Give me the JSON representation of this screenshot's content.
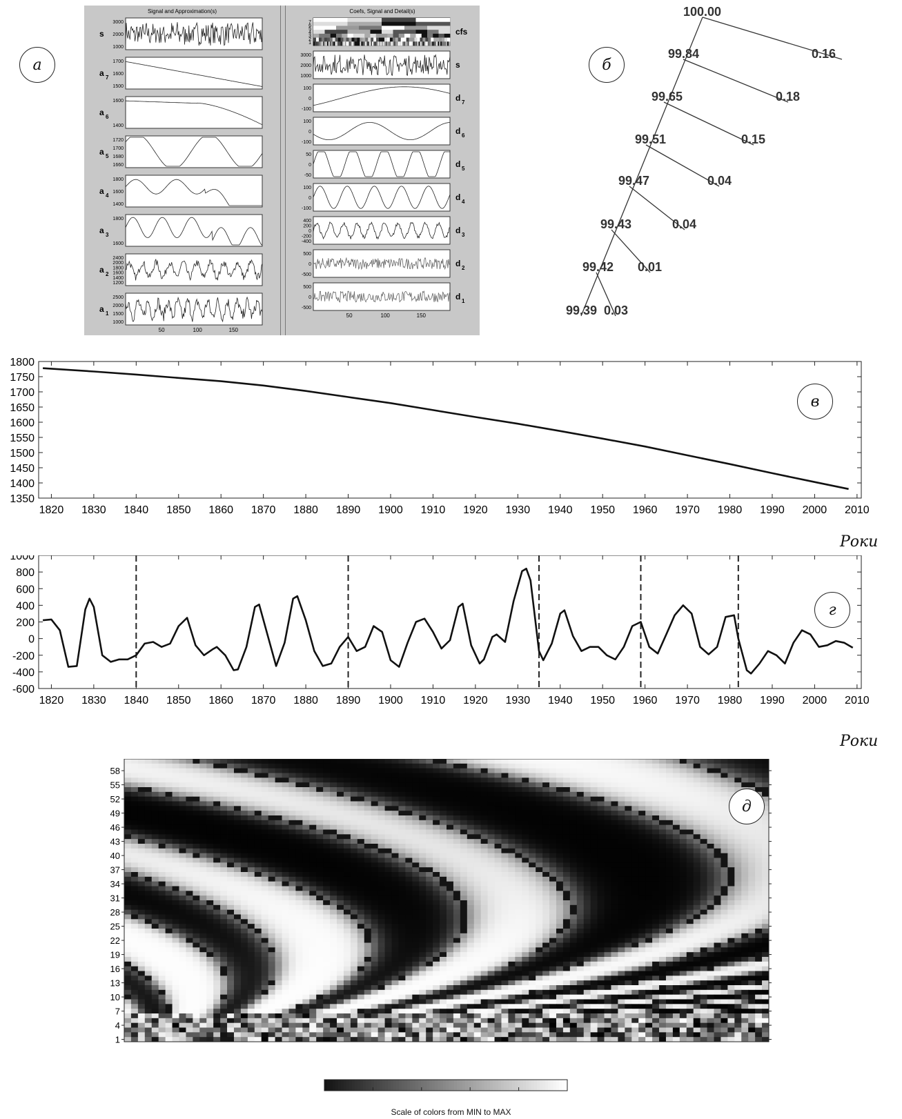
{
  "labels": {
    "a": "а",
    "b": "б",
    "v": "в",
    "g": "г",
    "d": "д",
    "years_axis": "Роки"
  },
  "panel_a": {
    "left_title": "Signal and Approximation(s)",
    "right_title": "Coefs, Signal and Detail(s)",
    "left_rows": [
      {
        "name": "s",
        "sub": "",
        "ticks": [
          "3000",
          "2000",
          "1000"
        ]
      },
      {
        "name": "a",
        "sub": "7",
        "ticks": [
          "1700",
          "1600",
          "1500"
        ]
      },
      {
        "name": "a",
        "sub": "6",
        "ticks": [
          "1600",
          "1400"
        ]
      },
      {
        "name": "a",
        "sub": "5",
        "ticks": [
          "1720",
          "1700",
          "1680",
          "1660"
        ]
      },
      {
        "name": "a",
        "sub": "4",
        "ticks": [
          "1800",
          "1600",
          "1400"
        ]
      },
      {
        "name": "a",
        "sub": "3",
        "ticks": [
          "1800",
          "1600"
        ]
      },
      {
        "name": "a",
        "sub": "2",
        "ticks": [
          "2400",
          "2000",
          "1800",
          "1600",
          "1400",
          "1200"
        ]
      },
      {
        "name": "a",
        "sub": "1",
        "ticks": [
          "2500",
          "2000",
          "1500",
          "1000"
        ]
      }
    ],
    "right_rows": [
      {
        "name": "cfs",
        "sub": "",
        "ticks": [
          "7",
          "6",
          "5",
          "4",
          "3",
          "2",
          "1"
        ]
      },
      {
        "name": "s",
        "sub": "",
        "ticks": [
          "3000",
          "2000",
          "1000"
        ]
      },
      {
        "name": "d",
        "sub": "7",
        "ticks": [
          "100",
          "0",
          "-100"
        ]
      },
      {
        "name": "d",
        "sub": "6",
        "ticks": [
          "100",
          "0",
          "-100"
        ]
      },
      {
        "name": "d",
        "sub": "5",
        "ticks": [
          "50",
          "0",
          "-50"
        ]
      },
      {
        "name": "d",
        "sub": "4",
        "ticks": [
          "100",
          "0",
          "-100"
        ]
      },
      {
        "name": "d",
        "sub": "3",
        "ticks": [
          "400",
          "200",
          "0",
          "-200",
          "-400"
        ]
      },
      {
        "name": "d",
        "sub": "2",
        "ticks": [
          "500",
          "0",
          "-500"
        ]
      },
      {
        "name": "d",
        "sub": "1",
        "ticks": [
          "500",
          "0",
          "-500"
        ]
      }
    ],
    "x_ticks": [
      "50",
      "100",
      "150"
    ]
  },
  "panel_b": {
    "trunk": [
      "100.00",
      "99.84",
      "99.65",
      "99.51",
      "99.47",
      "99.43",
      "99.42",
      "99.39"
    ],
    "branches": [
      "0.16",
      "0.18",
      "0.15",
      "0.04",
      "0.04",
      "0.01",
      "0.03"
    ]
  },
  "chart_data": [
    {
      "type": "line",
      "id": "v",
      "x": [
        1818,
        1830,
        1840,
        1850,
        1860,
        1870,
        1880,
        1890,
        1900,
        1910,
        1920,
        1930,
        1940,
        1950,
        1960,
        1970,
        1980,
        1990,
        2000,
        2008
      ],
      "y": [
        1778,
        1767,
        1757,
        1746,
        1735,
        1721,
        1703,
        1683,
        1663,
        1640,
        1617,
        1595,
        1571,
        1546,
        1520,
        1491,
        1462,
        1432,
        1403,
        1380
      ],
      "ylim": [
        1350,
        1800
      ],
      "xlim": [
        1817,
        2011
      ],
      "yticks": [
        "1800",
        "1750",
        "1700",
        "1650",
        "1600",
        "1550",
        "1500",
        "1450",
        "1400",
        "1350"
      ],
      "xticks": [
        "1820",
        "1830",
        "1840",
        "1850",
        "1860",
        "1870",
        "1880",
        "1890",
        "1900",
        "1910",
        "1920",
        "1930",
        "1940",
        "1950",
        "1960",
        "1970",
        "1980",
        "1990",
        "2000",
        "2010"
      ],
      "xlabel": "Роки"
    },
    {
      "type": "line",
      "id": "g",
      "x": [
        1818,
        1820,
        1822,
        1824,
        1826,
        1828,
        1829,
        1830,
        1832,
        1834,
        1836,
        1838,
        1840,
        1842,
        1844,
        1846,
        1848,
        1850,
        1852,
        1854,
        1856,
        1858,
        1859,
        1861,
        1863,
        1864,
        1866,
        1868,
        1869,
        1871,
        1873,
        1875,
        1877,
        1878,
        1880,
        1882,
        1884,
        1886,
        1888,
        1890,
        1892,
        1894,
        1896,
        1898,
        1900,
        1902,
        1904,
        1906,
        1908,
        1910,
        1912,
        1914,
        1916,
        1917,
        1919,
        1921,
        1922,
        1924,
        1925,
        1927,
        1929,
        1931,
        1932,
        1933,
        1935,
        1936,
        1938,
        1940,
        1941,
        1943,
        1945,
        1947,
        1949,
        1951,
        1953,
        1955,
        1957,
        1959,
        1961,
        1963,
        1965,
        1967,
        1969,
        1971,
        1973,
        1975,
        1977,
        1979,
        1981,
        1982,
        1984,
        1985,
        1987,
        1989,
        1991,
        1993,
        1995,
        1997,
        1999,
        2001,
        2003,
        2005,
        2007,
        2009
      ],
      "y": [
        220,
        230,
        100,
        -340,
        -330,
        350,
        480,
        380,
        -200,
        -280,
        -250,
        -250,
        -200,
        -60,
        -40,
        -100,
        -60,
        150,
        250,
        -80,
        -200,
        -130,
        -100,
        -200,
        -380,
        -370,
        -100,
        380,
        410,
        40,
        -330,
        -50,
        480,
        510,
        220,
        -150,
        -330,
        -300,
        -100,
        20,
        -150,
        -100,
        150,
        80,
        -260,
        -340,
        -50,
        200,
        240,
        80,
        -120,
        -20,
        380,
        420,
        -80,
        -300,
        -250,
        20,
        50,
        -40,
        450,
        810,
        840,
        700,
        -150,
        -260,
        -60,
        300,
        340,
        30,
        -150,
        -100,
        -100,
        -200,
        -250,
        -100,
        150,
        200,
        -100,
        -180,
        50,
        280,
        400,
        300,
        -100,
        -190,
        -100,
        260,
        280,
        0,
        -380,
        -420,
        -300,
        -150,
        -200,
        -300,
        -50,
        100,
        50,
        -100,
        -80,
        -30,
        -50,
        -110
      ],
      "ylim": [
        -600,
        1000
      ],
      "xlim": [
        1817,
        2011
      ],
      "yticks": [
        "1000",
        "800",
        "600",
        "400",
        "200",
        "0",
        "-200",
        "-400",
        "-600"
      ],
      "xticks": [
        "1820",
        "1830",
        "1840",
        "1850",
        "1860",
        "1870",
        "1880",
        "1890",
        "1900",
        "1910",
        "1920",
        "1930",
        "1940",
        "1950",
        "1960",
        "1970",
        "1980",
        "1990",
        "2000",
        "2010"
      ],
      "vlines": [
        1840,
        1890,
        1935,
        1959,
        1982
      ],
      "xlabel": "Роки"
    },
    {
      "type": "heatmap",
      "id": "d",
      "yticks": [
        "58",
        "55",
        "52",
        "49",
        "46",
        "43",
        "40",
        "37",
        "34",
        "31",
        "28",
        "25",
        "22",
        "19",
        "16",
        "13",
        "10",
        "7",
        "4",
        "1"
      ],
      "colorbar_caption": "Scale of colors from MIN to MAX"
    }
  ]
}
